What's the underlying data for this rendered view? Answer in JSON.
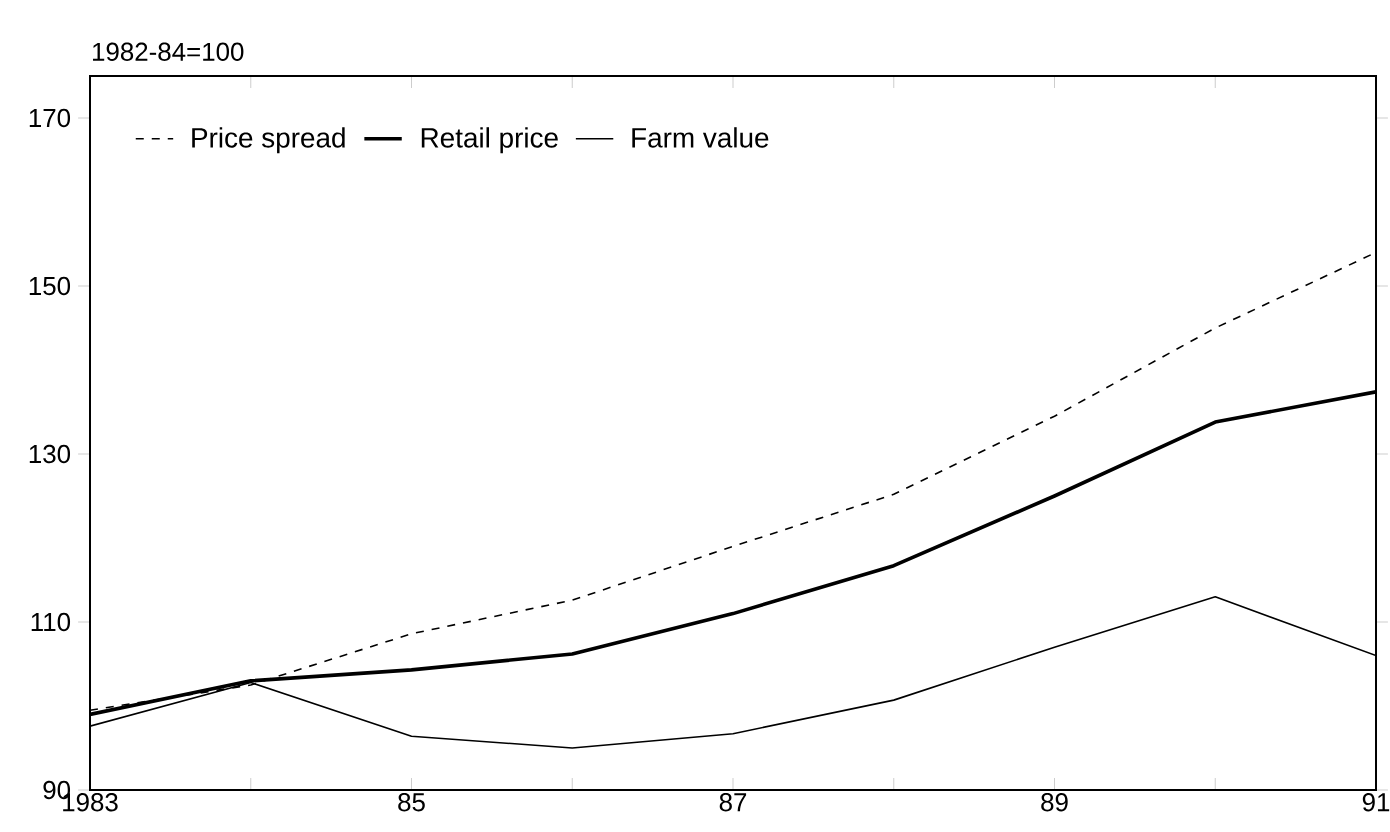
{
  "chart_data": {
    "type": "line",
    "ylabel": "1982-84=100",
    "x": [
      1983,
      1984,
      1985,
      1986,
      1987,
      1988,
      1989,
      1990,
      1991
    ],
    "xlim": [
      1983,
      1991
    ],
    "xticks": [
      1983,
      {
        "value": 1984,
        "label": null
      },
      {
        "value": 1985,
        "label": "85"
      },
      {
        "value": 1986,
        "label": null
      },
      {
        "value": 1987,
        "label": "87"
      },
      {
        "value": 1988,
        "label": null
      },
      {
        "value": 1989,
        "label": "89"
      },
      {
        "value": 1990,
        "label": null
      },
      {
        "value": 1991,
        "label": "91"
      }
    ],
    "ylim": [
      90,
      175
    ],
    "yticks": [
      90,
      110,
      130,
      150,
      170
    ],
    "grid": false,
    "legend": "top left",
    "series": [
      {
        "name": "Price spread",
        "color": "#000000",
        "line_style": "dashed",
        "values": [
          99.5,
          102.5,
          108.6,
          112.6,
          119,
          125.2,
          134.5,
          145,
          154
        ]
      },
      {
        "name": "Retail price",
        "color": "#000000",
        "line_style": "solid",
        "values": [
          99,
          103,
          104.3,
          106.2,
          111,
          116.7,
          125,
          133.8,
          137.4
        ]
      },
      {
        "name": "Farm value",
        "color": "#000000",
        "line_style": "solid",
        "values": [
          97.6,
          102.8,
          96.4,
          95,
          96.7,
          100.7,
          107,
          113,
          106
        ]
      }
    ]
  }
}
